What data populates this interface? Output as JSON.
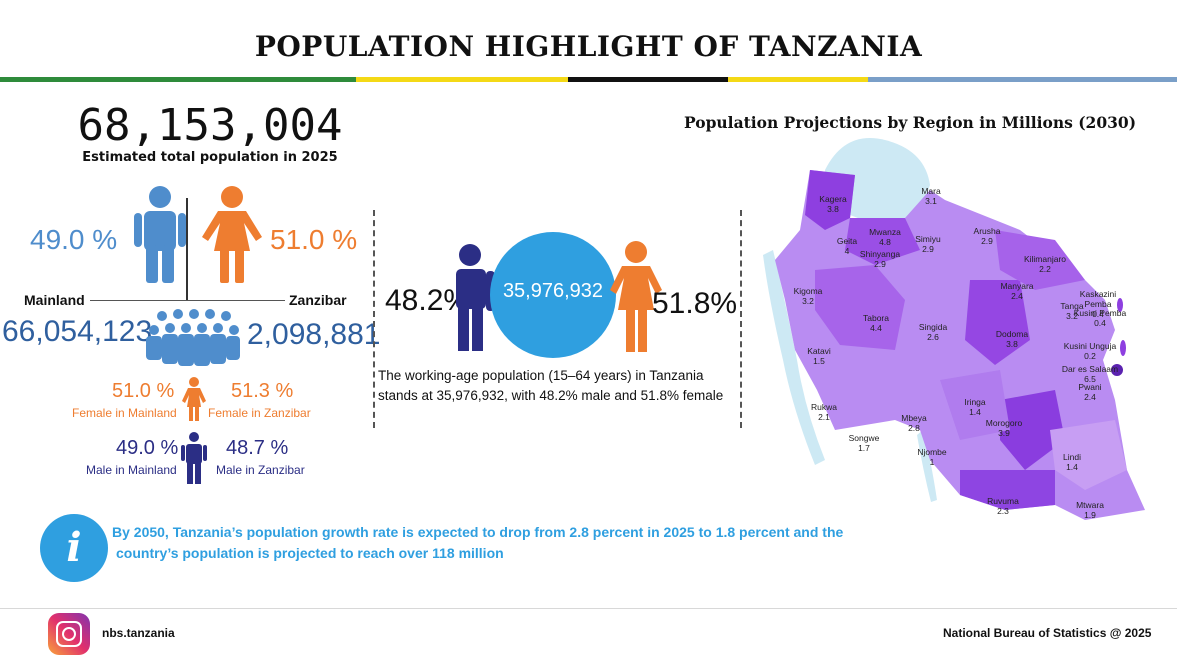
{
  "title": "POPULATION HIGHLIGHT OF TANZANIA",
  "colors": {
    "green": "#2e8b3b",
    "yellow": "#f4d916",
    "black": "#111111",
    "blue": "#7a9fc8",
    "male_blue": "#4f8dcc",
    "female_orange": "#ee7d30",
    "navy": "#2b2e85",
    "accent": "#2f9fe0",
    "map_purple": "#9b5de5"
  },
  "total": {
    "value": "68,153,004",
    "caption": "Estimated total population in 2025",
    "male_pct": "49.0 %",
    "female_pct": "51.0 %"
  },
  "split": {
    "mainland_label": "Mainland",
    "zanzibar_label": "Zanzibar",
    "mainland_value": "66,054,123",
    "zanzibar_value": "2,098,881"
  },
  "female": {
    "mainland_pct": "51.0 %",
    "zanzibar_pct": "51.3 %",
    "mainland_label": "Female in Mainland",
    "zanzibar_label": "Female in Zanzibar"
  },
  "male": {
    "mainland_pct": "49.0 %",
    "zanzibar_pct": "48.7 %",
    "mainland_label": "Male in Mainland",
    "zanzibar_label": "Male in Zanzibar"
  },
  "working_age": {
    "value": "35,976,932",
    "male_pct": "48.2%",
    "female_pct": "51.8%",
    "text_line1": "The working-age population (15–64 years) in Tanzania",
    "text_line2": "stands at 35,976,932, with 48.2% male and 51.8% female"
  },
  "map": {
    "title": "Population Projections by Region in Millions (2030)",
    "regions": [
      {
        "name": "Kagera",
        "value": "3.8"
      },
      {
        "name": "Mara",
        "value": "3.1"
      },
      {
        "name": "Mwanza",
        "value": "4.8"
      },
      {
        "name": "Geita",
        "value": "4"
      },
      {
        "name": "Simiyu",
        "value": "2.9"
      },
      {
        "name": "Shinyanga",
        "value": "2.9"
      },
      {
        "name": "Arusha",
        "value": "2.9"
      },
      {
        "name": "Kilimanjaro",
        "value": "2.2"
      },
      {
        "name": "Kigoma",
        "value": "3.2"
      },
      {
        "name": "Manyara",
        "value": "2.4"
      },
      {
        "name": "Kaskazini Pemba",
        "value": "0.4"
      },
      {
        "name": "Tanga",
        "value": "3.2"
      },
      {
        "name": "Kusini Pemba",
        "value": "0.4"
      },
      {
        "name": "Tabora",
        "value": "4.4"
      },
      {
        "name": "Singida",
        "value": "2.6"
      },
      {
        "name": "Dodoma",
        "value": "3.8"
      },
      {
        "name": "Kusini Unguja",
        "value": "0.2"
      },
      {
        "name": "Dar es Salaam",
        "value": "6.5"
      },
      {
        "name": "Katavi",
        "value": "1.5"
      },
      {
        "name": "Pwani",
        "value": "2.4"
      },
      {
        "name": "Iringa",
        "value": "1.4"
      },
      {
        "name": "Rukwa",
        "value": "2.1"
      },
      {
        "name": "Mbeya",
        "value": "2.8"
      },
      {
        "name": "Morogoro",
        "value": "3.9"
      },
      {
        "name": "Songwe",
        "value": "1.7"
      },
      {
        "name": "Njombe",
        "value": "1"
      },
      {
        "name": "Lindi",
        "value": "1.4"
      },
      {
        "name": "Ruvuma",
        "value": "2.3"
      },
      {
        "name": "Mtwara",
        "value": "1.9"
      }
    ]
  },
  "info": {
    "line1": "By 2050, Tanzania’s population growth rate is expected to drop from 2.8 percent in 2025 to 1.8 percent and the",
    "line2": "country’s population is projected to reach over 118 million"
  },
  "footer": {
    "handle": "nbs.tanzania",
    "credit": "National Bureau of Statistics @ 2025"
  }
}
